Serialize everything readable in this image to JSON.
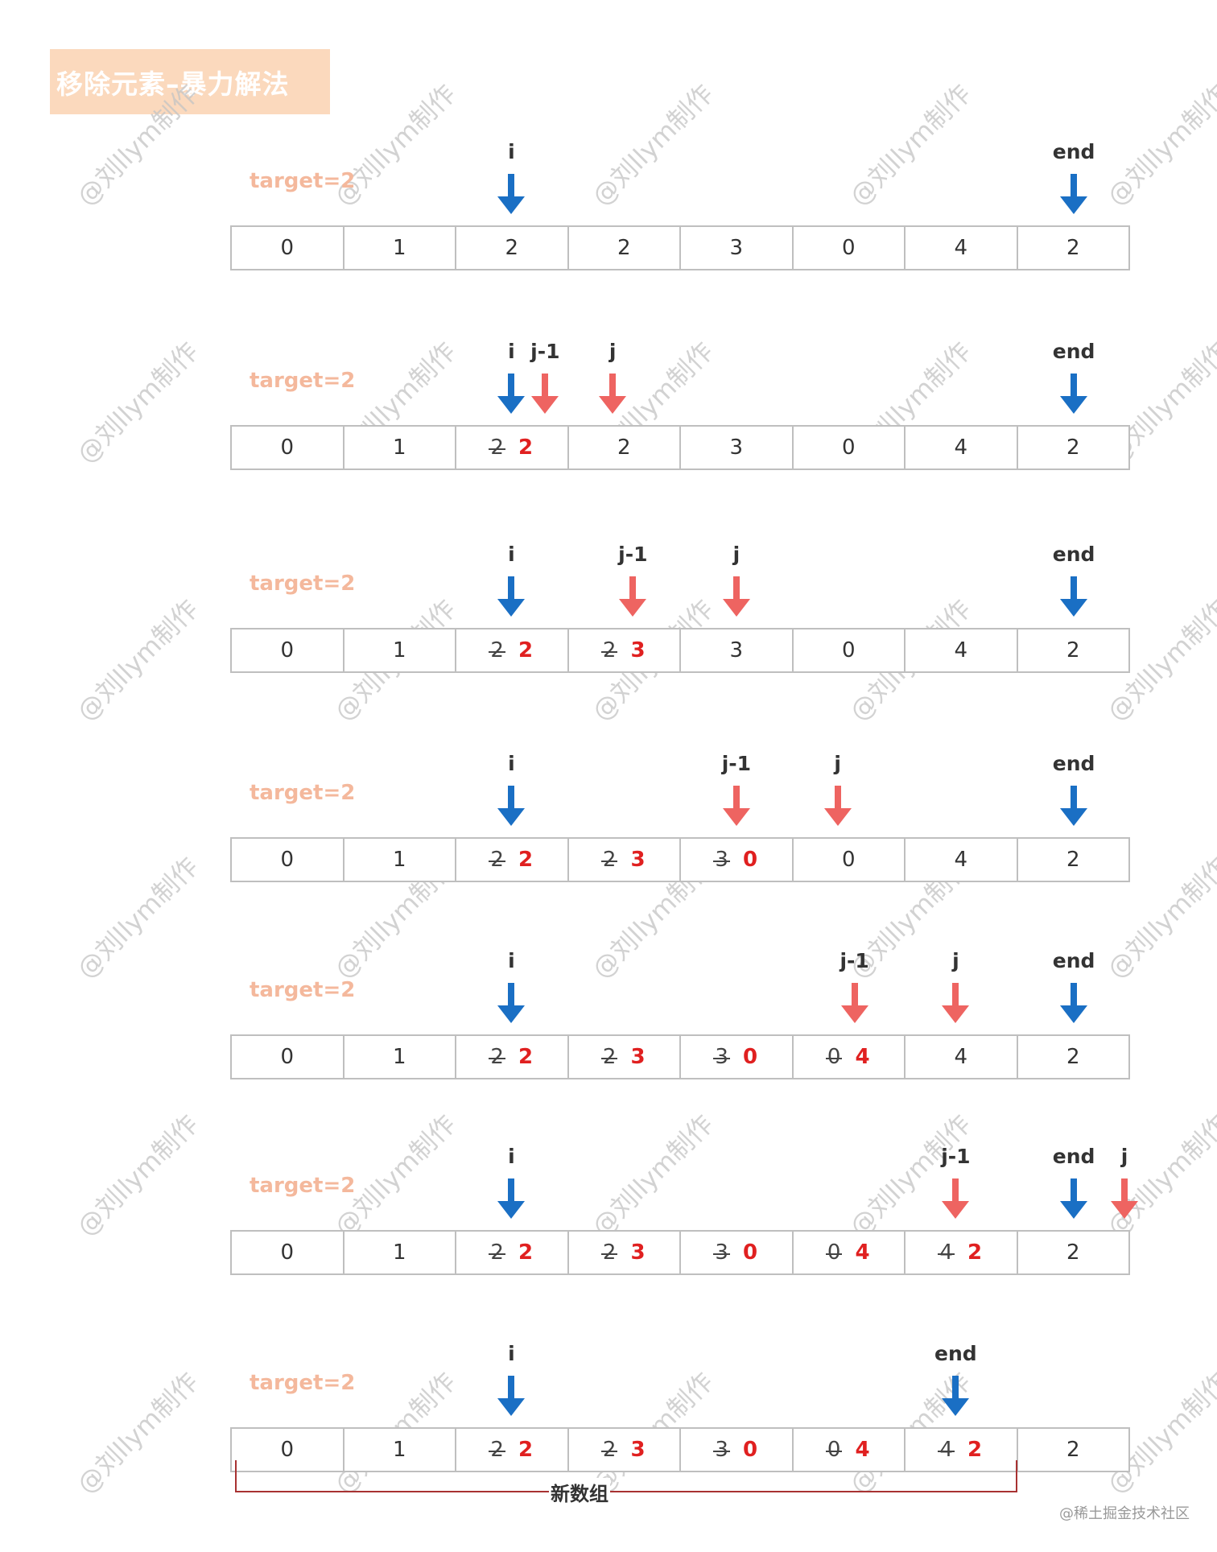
{
  "title": "移除元素–暴力解法",
  "watermark": "@刘llym制作",
  "target_label": "target=2",
  "colors": {
    "blue": "#1a6fc4",
    "red": "#ee6461",
    "title_bg": "#fbd9bd",
    "target": "#f4b89c",
    "bracket": "#a83232"
  },
  "rows": [
    {
      "cells": [
        {
          "old": "0",
          "new": ""
        },
        {
          "old": "1",
          "new": ""
        },
        {
          "old": "2",
          "new": ""
        },
        {
          "old": "2",
          "new": ""
        },
        {
          "old": "3",
          "new": ""
        },
        {
          "old": "0",
          "new": ""
        },
        {
          "old": "4",
          "new": ""
        },
        {
          "old": "2",
          "new": ""
        }
      ],
      "pointers": [
        {
          "label": "i",
          "color": "blue",
          "cell": 2,
          "offset": 0
        },
        {
          "label": "end",
          "color": "blue",
          "cell": 7,
          "offset": 0
        }
      ]
    },
    {
      "cells": [
        {
          "old": "0",
          "new": ""
        },
        {
          "old": "1",
          "new": ""
        },
        {
          "old": "2",
          "new": "2"
        },
        {
          "old": "2",
          "new": ""
        },
        {
          "old": "3",
          "new": ""
        },
        {
          "old": "0",
          "new": ""
        },
        {
          "old": "4",
          "new": ""
        },
        {
          "old": "2",
          "new": ""
        }
      ],
      "pointers": [
        {
          "label": "i",
          "color": "blue",
          "cell": 2,
          "offset": 0
        },
        {
          "label": "j-1",
          "color": "red",
          "cell": 2,
          "offset": 0.3
        },
        {
          "label": "j",
          "color": "red",
          "cell": 2,
          "offset": 0.9
        },
        {
          "label": "end",
          "color": "blue",
          "cell": 7,
          "offset": 0
        }
      ]
    },
    {
      "cells": [
        {
          "old": "0",
          "new": ""
        },
        {
          "old": "1",
          "new": ""
        },
        {
          "old": "2",
          "new": "2"
        },
        {
          "old": "2",
          "new": "3"
        },
        {
          "old": "3",
          "new": ""
        },
        {
          "old": "0",
          "new": ""
        },
        {
          "old": "4",
          "new": ""
        },
        {
          "old": "2",
          "new": ""
        }
      ],
      "pointers": [
        {
          "label": "i",
          "color": "blue",
          "cell": 2,
          "offset": 0
        },
        {
          "label": "j-1",
          "color": "red",
          "cell": 3,
          "offset": 0.08
        },
        {
          "label": "j",
          "color": "red",
          "cell": 4,
          "offset": 0
        },
        {
          "label": "end",
          "color": "blue",
          "cell": 7,
          "offset": 0
        }
      ]
    },
    {
      "cells": [
        {
          "old": "0",
          "new": ""
        },
        {
          "old": "1",
          "new": ""
        },
        {
          "old": "2",
          "new": "2"
        },
        {
          "old": "2",
          "new": "3"
        },
        {
          "old": "3",
          "new": "0"
        },
        {
          "old": "0",
          "new": ""
        },
        {
          "old": "4",
          "new": ""
        },
        {
          "old": "2",
          "new": ""
        }
      ],
      "pointers": [
        {
          "label": "i",
          "color": "blue",
          "cell": 2,
          "offset": 0
        },
        {
          "label": "j-1",
          "color": "red",
          "cell": 4,
          "offset": 0
        },
        {
          "label": "j",
          "color": "red",
          "cell": 5,
          "offset": -0.1
        },
        {
          "label": "end",
          "color": "blue",
          "cell": 7,
          "offset": 0
        }
      ]
    },
    {
      "cells": [
        {
          "old": "0",
          "new": ""
        },
        {
          "old": "1",
          "new": ""
        },
        {
          "old": "2",
          "new": "2"
        },
        {
          "old": "2",
          "new": "3"
        },
        {
          "old": "3",
          "new": "0"
        },
        {
          "old": "0",
          "new": "4"
        },
        {
          "old": "4",
          "new": ""
        },
        {
          "old": "2",
          "new": ""
        }
      ],
      "pointers": [
        {
          "label": "i",
          "color": "blue",
          "cell": 2,
          "offset": 0
        },
        {
          "label": "j-1",
          "color": "red",
          "cell": 5,
          "offset": 0.05
        },
        {
          "label": "j",
          "color": "red",
          "cell": 6,
          "offset": -0.05
        },
        {
          "label": "end",
          "color": "blue",
          "cell": 7,
          "offset": 0
        }
      ]
    },
    {
      "cells": [
        {
          "old": "0",
          "new": ""
        },
        {
          "old": "1",
          "new": ""
        },
        {
          "old": "2",
          "new": "2"
        },
        {
          "old": "2",
          "new": "3"
        },
        {
          "old": "3",
          "new": "0"
        },
        {
          "old": "0",
          "new": "4"
        },
        {
          "old": "4",
          "new": "2"
        },
        {
          "old": "2",
          "new": ""
        }
      ],
      "pointers": [
        {
          "label": "i",
          "color": "blue",
          "cell": 2,
          "offset": 0
        },
        {
          "label": "j-1",
          "color": "red",
          "cell": 6,
          "offset": -0.05
        },
        {
          "label": "end",
          "color": "blue",
          "cell": 7,
          "offset": 0
        },
        {
          "label": "j",
          "color": "red",
          "cell": 7,
          "offset": 0.45
        }
      ]
    },
    {
      "cells": [
        {
          "old": "0",
          "new": ""
        },
        {
          "old": "1",
          "new": ""
        },
        {
          "old": "2",
          "new": "2"
        },
        {
          "old": "2",
          "new": "3"
        },
        {
          "old": "3",
          "new": "0"
        },
        {
          "old": "0",
          "new": "4"
        },
        {
          "old": "4",
          "new": "2"
        },
        {
          "old": "2",
          "new": ""
        }
      ],
      "pointers": [
        {
          "label": "i",
          "color": "blue",
          "cell": 2,
          "offset": 0
        },
        {
          "label": "end",
          "color": "blue",
          "cell": 6,
          "offset": -0.05
        }
      ]
    }
  ],
  "bracket_label": "新数组",
  "credit": "@稀土掘金技术社区"
}
